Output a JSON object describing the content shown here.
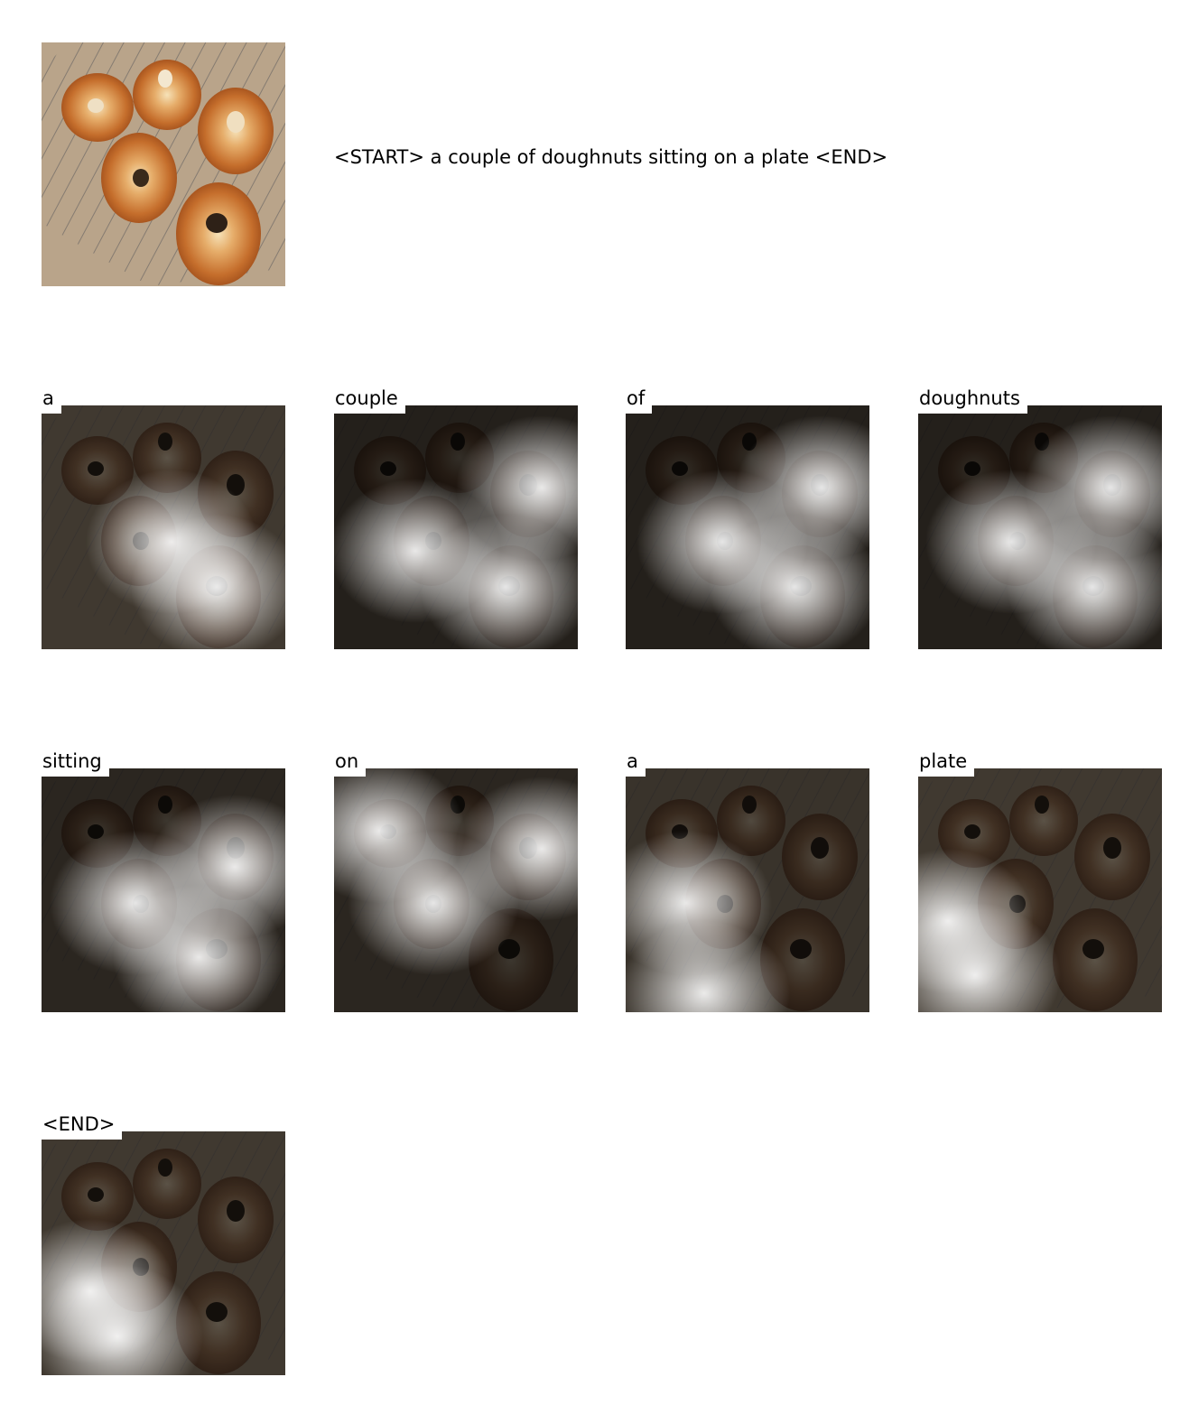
{
  "caption": "<START> a couple of doughnuts sitting on a plate <END>",
  "original_image": {
    "icon": "doughnuts-on-cooling-rack-photo"
  },
  "steps": [
    {
      "word": "a",
      "attention_strength": 0.55
    },
    {
      "word": "couple",
      "attention_strength": 0.75
    },
    {
      "word": "of",
      "attention_strength": 0.75
    },
    {
      "word": "doughnuts",
      "attention_strength": 0.75
    },
    {
      "word": "sitting",
      "attention_strength": 0.7
    },
    {
      "word": "on",
      "attention_strength": 0.7
    },
    {
      "word": "a",
      "attention_strength": 0.6
    },
    {
      "word": "plate",
      "attention_strength": 0.55
    },
    {
      "word": "<END>",
      "attention_strength": 0.55
    }
  ],
  "colors": {
    "background": "#ffffff",
    "rack_bg": "#b8a48c",
    "doughnut_crust": "#c97a35",
    "doughnut_light": "#f2d6a2",
    "overlay_dark": "#000000",
    "attention_highlight": "#ffffff"
  }
}
